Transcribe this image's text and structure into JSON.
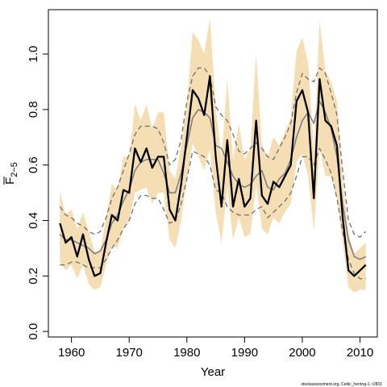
{
  "chart_data": {
    "type": "line",
    "xlabel": "Year",
    "ylabel": "F",
    "ylabel_sub": "2−5",
    "xlim": [
      1956,
      2013
    ],
    "ylim": [
      -0.02,
      1.16
    ],
    "x_ticks": [
      "1960",
      "1970",
      "1980",
      "1990",
      "2000",
      "2010"
    ],
    "y_ticks": [
      "0.0",
      "0.2",
      "0.4",
      "0.6",
      "0.8",
      "1.0"
    ],
    "footnote": "stockassessment.org, Celtic_herring-1, r2831",
    "colors": {
      "band": "#f5deb3",
      "main": "#000000",
      "secondary": "#808080",
      "secondary_bounds": "#707070"
    },
    "series": [
      {
        "role": "band",
        "x": [
          1958,
          1959,
          1960,
          1961,
          1962,
          1963,
          1964,
          1965,
          1966,
          1967,
          1968,
          1969,
          1970,
          1971,
          1972,
          1973,
          1974,
          1975,
          1976,
          1977,
          1978,
          1979,
          1980,
          1981,
          1982,
          1983,
          1984,
          1985,
          1986,
          1987,
          1988,
          1989,
          1990,
          1991,
          1992,
          1993,
          1994,
          1995,
          1996,
          1997,
          1998,
          1999,
          2000,
          2001,
          2002,
          2003,
          2004,
          2005,
          2006,
          2007,
          2008,
          2009,
          2010,
          2011
        ],
        "lower": [
          0.25,
          0.22,
          0.24,
          0.19,
          0.24,
          0.17,
          0.15,
          0.16,
          0.24,
          0.31,
          0.3,
          0.37,
          0.4,
          0.5,
          0.51,
          0.52,
          0.46,
          0.5,
          0.5,
          0.33,
          0.3,
          0.4,
          0.55,
          0.68,
          0.63,
          0.58,
          0.66,
          0.43,
          0.32,
          0.52,
          0.33,
          0.41,
          0.34,
          0.35,
          0.53,
          0.37,
          0.35,
          0.41,
          0.39,
          0.43,
          0.46,
          0.61,
          0.64,
          0.56,
          0.36,
          0.66,
          0.56,
          0.56,
          0.48,
          0.32,
          0.16,
          0.14,
          0.15,
          0.15
        ],
        "upper": [
          0.51,
          0.42,
          0.44,
          0.37,
          0.43,
          0.36,
          0.29,
          0.29,
          0.41,
          0.53,
          0.51,
          0.63,
          0.63,
          0.82,
          0.76,
          0.82,
          0.73,
          0.79,
          0.79,
          0.58,
          0.55,
          0.67,
          0.82,
          1.08,
          1.05,
          1.0,
          1.13,
          0.81,
          0.62,
          0.91,
          0.62,
          0.75,
          0.62,
          0.66,
          1.0,
          0.67,
          0.63,
          0.7,
          0.67,
          0.72,
          0.77,
          1.01,
          1.06,
          0.97,
          0.65,
          1.12,
          0.94,
          0.9,
          0.83,
          0.55,
          0.35,
          0.28,
          0.3,
          0.32
        ]
      },
      {
        "role": "main",
        "values": [
          0.39,
          0.32,
          0.34,
          0.27,
          0.35,
          0.26,
          0.2,
          0.21,
          0.32,
          0.42,
          0.4,
          0.51,
          0.5,
          0.66,
          0.61,
          0.66,
          0.59,
          0.63,
          0.63,
          0.44,
          0.4,
          0.53,
          0.7,
          0.87,
          0.84,
          0.78,
          0.92,
          0.63,
          0.45,
          0.69,
          0.45,
          0.55,
          0.45,
          0.48,
          0.76,
          0.49,
          0.46,
          0.54,
          0.52,
          0.56,
          0.6,
          0.83,
          0.87,
          0.79,
          0.48,
          0.91,
          0.76,
          0.74,
          0.67,
          0.41,
          0.22,
          0.2,
          0.22,
          0.24
        ]
      },
      {
        "role": "secondary",
        "values": [
          0.35,
          0.33,
          0.33,
          0.32,
          0.31,
          0.3,
          0.28,
          0.29,
          0.33,
          0.39,
          0.42,
          0.47,
          0.51,
          0.58,
          0.61,
          0.62,
          0.62,
          0.62,
          0.57,
          0.5,
          0.5,
          0.57,
          0.67,
          0.77,
          0.8,
          0.79,
          0.77,
          0.67,
          0.66,
          0.61,
          0.56,
          0.53,
          0.52,
          0.53,
          0.56,
          0.58,
          0.52,
          0.51,
          0.55,
          0.57,
          0.62,
          0.7,
          0.76,
          0.79,
          0.75,
          0.83,
          0.79,
          0.73,
          0.63,
          0.46,
          0.33,
          0.27,
          0.26,
          0.27
        ]
      },
      {
        "role": "secondary_lower",
        "values": [
          0.24,
          0.24,
          0.25,
          0.25,
          0.24,
          0.23,
          0.23,
          0.23,
          0.26,
          0.3,
          0.33,
          0.37,
          0.4,
          0.46,
          0.49,
          0.49,
          0.48,
          0.48,
          0.44,
          0.39,
          0.4,
          0.46,
          0.55,
          0.65,
          0.64,
          0.63,
          0.6,
          0.51,
          0.5,
          0.45,
          0.43,
          0.42,
          0.42,
          0.42,
          0.44,
          0.45,
          0.41,
          0.43,
          0.45,
          0.47,
          0.5,
          0.56,
          0.63,
          0.63,
          0.6,
          0.66,
          0.62,
          0.57,
          0.48,
          0.36,
          0.26,
          0.21,
          0.19,
          0.19
        ]
      },
      {
        "role": "secondary_upper",
        "values": [
          0.45,
          0.42,
          0.41,
          0.39,
          0.38,
          0.36,
          0.35,
          0.36,
          0.41,
          0.48,
          0.52,
          0.58,
          0.64,
          0.71,
          0.74,
          0.74,
          0.74,
          0.73,
          0.68,
          0.6,
          0.62,
          0.69,
          0.83,
          0.92,
          0.95,
          0.95,
          0.92,
          0.81,
          0.78,
          0.76,
          0.71,
          0.65,
          0.64,
          0.66,
          0.68,
          0.66,
          0.63,
          0.62,
          0.66,
          0.7,
          0.75,
          0.86,
          0.93,
          0.91,
          0.9,
          0.95,
          0.93,
          0.86,
          0.78,
          0.58,
          0.4,
          0.35,
          0.34,
          0.36
        ]
      }
    ]
  }
}
